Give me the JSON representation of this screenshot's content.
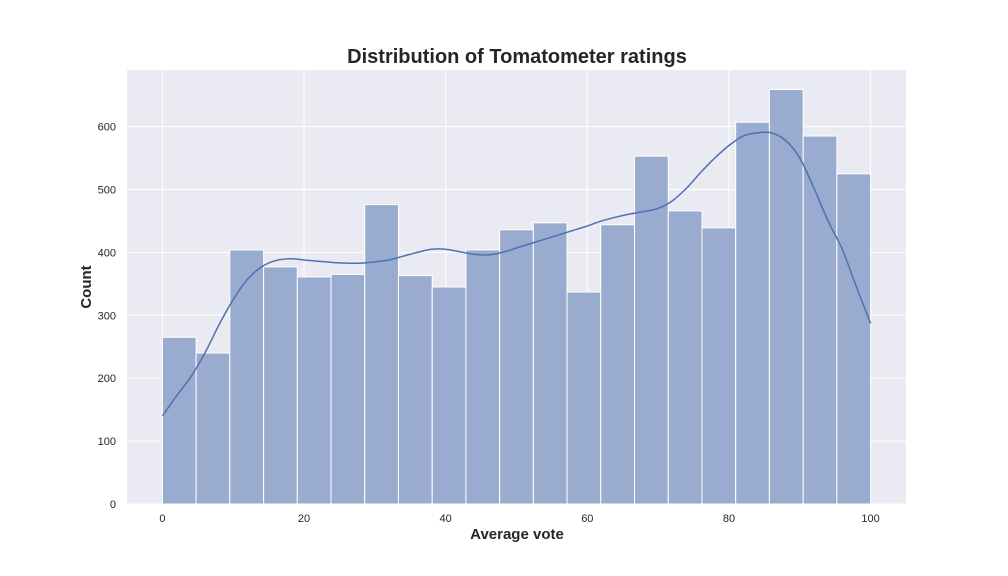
{
  "chart_data": {
    "type": "bar",
    "title": "Distribution of Tomatometer ratings",
    "xlabel": "Average vote",
    "ylabel": "Count",
    "xlim": [
      -5,
      105
    ],
    "ylim": [
      0,
      690
    ],
    "x_ticks": [
      0,
      20,
      40,
      60,
      80,
      100
    ],
    "y_ticks": [
      0,
      100,
      200,
      300,
      400,
      500,
      600
    ],
    "grid": true,
    "bin_width": 4.76,
    "bin_edges": [
      0,
      4.76,
      9.52,
      14.29,
      19.05,
      23.81,
      28.57,
      33.33,
      38.1,
      42.86,
      47.62,
      52.38,
      57.14,
      61.9,
      66.67,
      71.43,
      76.19,
      80.95,
      85.71,
      90.48,
      95.24,
      100
    ],
    "values": [
      265,
      240,
      404,
      377,
      361,
      365,
      476,
      363,
      345,
      404,
      436,
      447,
      337,
      444,
      553,
      466,
      439,
      607,
      659,
      585,
      525
    ],
    "kde": {
      "x": [
        0,
        2,
        4,
        6,
        8,
        10,
        12,
        14,
        16,
        18,
        20,
        22,
        24,
        26,
        28,
        30,
        32,
        34,
        36,
        38,
        40,
        42,
        44,
        46,
        48,
        50,
        52,
        54,
        56,
        58,
        60,
        62,
        64,
        66,
        68,
        70,
        72,
        74,
        76,
        78,
        80,
        82,
        84,
        86,
        88,
        90,
        92,
        94,
        96,
        98,
        100
      ],
      "y": [
        140,
        172,
        202,
        240,
        285,
        325,
        357,
        377,
        387,
        390,
        388,
        386,
        384,
        383,
        383,
        385,
        388,
        394,
        400,
        405,
        405,
        401,
        397,
        396,
        400,
        407,
        414,
        421,
        428,
        435,
        442,
        450,
        456,
        461,
        465,
        470,
        482,
        502,
        527,
        550,
        570,
        585,
        590,
        590,
        578,
        550,
        502,
        450,
        405,
        345,
        287
      ]
    },
    "colors": {
      "bar": "#9aabd0",
      "bar_edge": "#ffffff",
      "kde": "#4c72b0",
      "plot_bg": "#eaeaf2",
      "grid": "#ffffff"
    }
  }
}
